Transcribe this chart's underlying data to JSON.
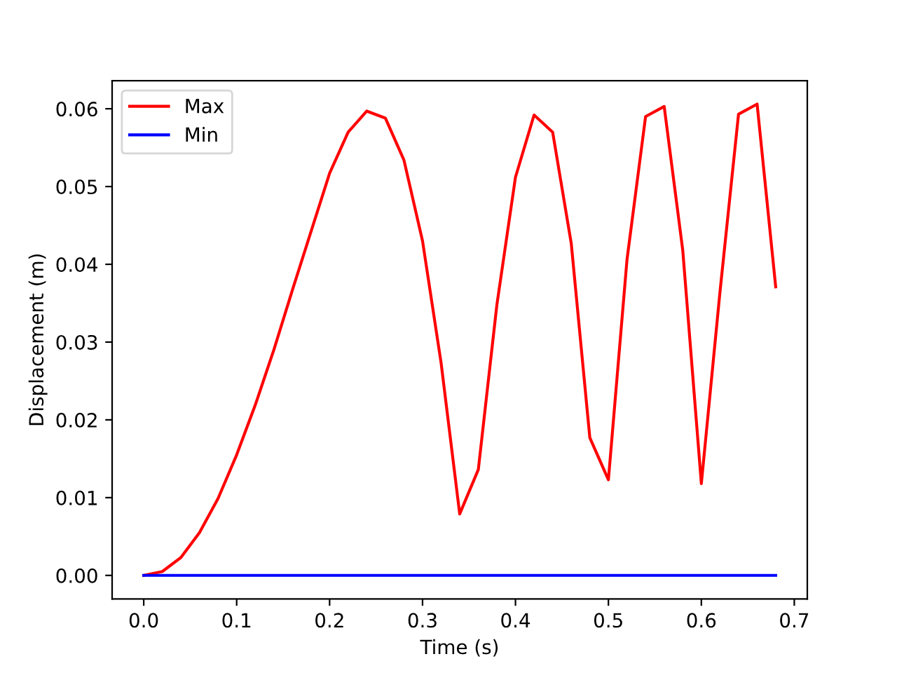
{
  "chart_data": {
    "type": "line",
    "xlabel": "Time (s)",
    "ylabel": "Displacement (m)",
    "x": [
      0,
      0.02,
      0.04,
      0.06,
      0.08,
      0.1,
      0.12,
      0.14,
      0.16,
      0.18,
      0.2,
      0.22,
      0.24,
      0.26,
      0.28,
      0.3,
      0.32,
      0.34,
      0.36,
      0.38,
      0.4,
      0.42,
      0.44,
      0.46,
      0.48,
      0.5,
      0.52,
      0.54,
      0.56,
      0.58,
      0.6,
      0.62,
      0.64,
      0.66,
      0.68
    ],
    "series": [
      {
        "name": "Max",
        "color": "#ff0000",
        "values": [
          0,
          0.0005,
          0.0023,
          0.0055,
          0.0099,
          0.0155,
          0.0219,
          0.029,
          0.0367,
          0.0442,
          0.0517,
          0.057,
          0.0597,
          0.0588,
          0.0534,
          0.043,
          0.0273,
          0.0079,
          0.0136,
          0.0348,
          0.0512,
          0.0592,
          0.057,
          0.0427,
          0.0177,
          0.0123,
          0.0406,
          0.059,
          0.0603,
          0.0418,
          0.0118,
          0.0364,
          0.0593,
          0.0606,
          0.0371
        ]
      },
      {
        "name": "Min",
        "color": "#0000ff",
        "values": [
          0,
          0,
          0,
          0,
          0,
          0,
          0,
          0,
          0,
          0,
          0,
          0,
          0,
          0,
          0,
          0,
          0,
          0,
          0,
          0,
          0,
          0,
          0,
          0,
          0,
          0,
          0,
          0,
          0,
          0,
          0,
          0,
          0,
          0,
          0
        ]
      }
    ],
    "xlim": [
      -0.034,
      0.714
    ],
    "xticks": [
      {
        "value": 0,
        "label": "0.0"
      },
      0.1,
      0.2,
      0.3,
      0.4,
      0.5,
      0.6,
      0.7
    ],
    "ylim": [
      -0.00303,
      0.0636
    ],
    "yticks": [
      {
        "value": 0,
        "label": "0.00"
      },
      {
        "value": 0.01,
        "label": "0.01"
      },
      {
        "value": 0.02,
        "label": "0.02"
      },
      {
        "value": 0.03,
        "label": "0.03"
      },
      {
        "value": 0.04,
        "label": "0.04"
      },
      {
        "value": 0.05,
        "label": "0.05"
      },
      {
        "value": 0.06,
        "label": "0.06"
      }
    ],
    "legend": "top left",
    "grid": false,
    "line_style": "solid",
    "marker": "none"
  }
}
